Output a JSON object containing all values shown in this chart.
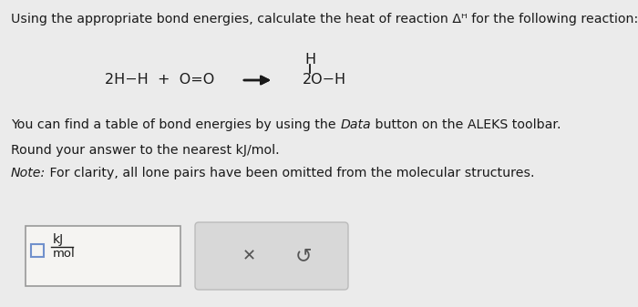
{
  "bg_color": "#ebebeb",
  "title_line1": "Using the appropriate bond energies, calculate the heat of reaction Δᴴ for the following reaction:",
  "font_color": "#1a1a1a",
  "box1_color": "#f5f4f2",
  "box2_color": "#d8d8d8",
  "box_border": "#aaaaaa",
  "checkbox_border": "#7090cc",
  "reaction_left": "2H−H  +  O=O",
  "reaction_arrow": "➡",
  "reaction_right": "2O−H",
  "reaction_H": "H",
  "p1a": "You can find a table of bond energies by using the ",
  "p1b": "Data",
  "p1c": " button on the ALEKS toolbar.",
  "p2": "Round your answer to the nearest kJ/mol.",
  "p3a": "Note:",
  "p3b": " For clarity, all lone pairs have been omitted from the molecular structures.",
  "kJ": "kJ",
  "mol": "mol"
}
